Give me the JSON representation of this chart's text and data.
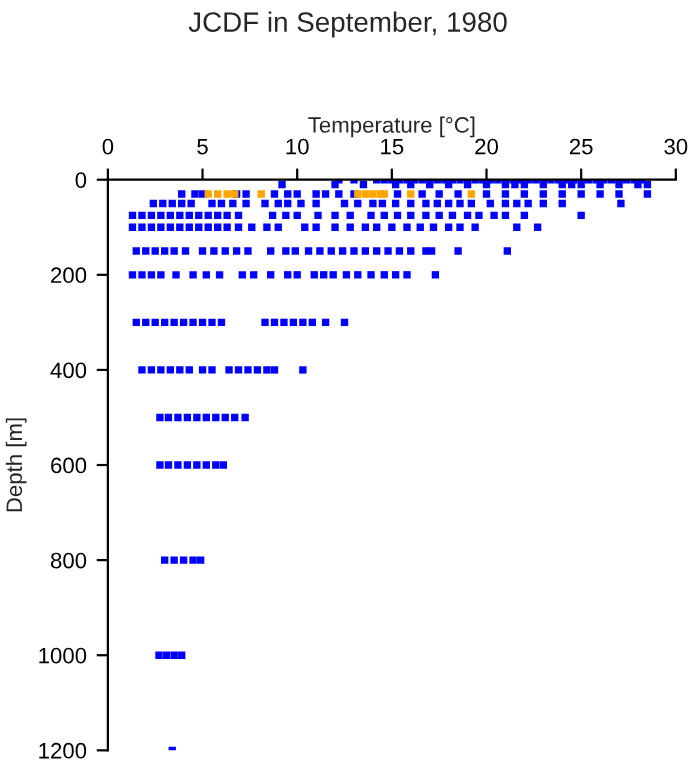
{
  "chart_data": {
    "type": "scatter",
    "title": "JCDF in September, 1980",
    "xlabel": "Temperature [°C]",
    "ylabel": "Depth [m]",
    "xlim": [
      0,
      30
    ],
    "xticks": [
      0,
      5,
      10,
      15,
      20,
      25,
      30
    ],
    "ylim": [
      1200,
      0
    ],
    "yticks": [
      0,
      200,
      400,
      600,
      800,
      1000,
      1200
    ],
    "grid": false,
    "legend": false,
    "marker": "square",
    "series": [
      {
        "color": "#0000ff",
        "x": [
          12.2,
          13.0,
          14.2,
          14.6,
          15.0,
          15.4,
          15.8,
          16.2,
          16.6,
          17.0,
          17.4,
          17.8,
          18.2,
          18.6,
          19.0,
          19.4,
          19.8,
          20.2,
          20.6,
          21.0,
          21.4,
          21.8,
          22.2,
          22.6,
          23.0,
          23.4,
          23.8,
          24.2,
          24.6,
          25.0,
          25.4,
          25.8,
          26.2,
          26.6,
          27.0,
          27.4,
          27.8,
          28.2,
          9.2,
          12.0,
          13.5,
          15.2,
          16,
          17,
          18,
          19,
          20,
          21,
          21.5,
          22,
          23,
          24,
          24.5,
          25,
          26,
          27,
          28,
          28.5,
          3.9,
          4.6,
          5.0,
          6.8,
          7.3,
          8.8,
          9.5,
          10.0,
          11.0,
          11.5,
          12.2,
          13.0,
          15.3,
          16.6,
          17.5,
          18.5,
          20.0,
          21.0,
          22.0,
          23.0,
          24.0,
          25.0,
          26.0,
          27.0,
          28.5,
          2.4,
          2.9,
          3.4,
          3.9,
          4.4,
          5.5,
          6.0,
          6.6,
          7.3,
          8.3,
          9.0,
          9.5,
          10.2,
          11.0,
          12.5,
          13.2,
          14.0,
          14.5,
          15.2,
          16.0,
          16.8,
          17.4,
          18.0,
          18.6,
          19.2,
          20.2,
          21.0,
          21.6,
          22.2,
          23.0,
          24.0,
          27.1,
          1.3,
          1.8,
          2.3,
          2.8,
          3.3,
          3.8,
          4.3,
          4.8,
          5.3,
          5.8,
          6.3,
          6.9,
          8.7,
          9.4,
          10.0,
          11.1,
          12.0,
          12.8,
          13.9,
          14.6,
          15.3,
          16.0,
          16.8,
          17.5,
          18.2,
          19.0,
          19.6,
          20.4,
          21.0,
          22.0,
          25.0,
          1.3,
          1.8,
          2.3,
          2.8,
          3.3,
          3.8,
          4.3,
          4.8,
          5.3,
          5.8,
          6.3,
          6.9,
          7.6,
          8.4,
          9.0,
          10.4,
          11.0,
          12.0,
          12.8,
          13.6,
          14.2,
          15.0,
          15.8,
          16.5,
          17.2,
          18.0,
          18.6,
          19.4,
          21.6,
          22.7,
          1.5,
          2.0,
          2.5,
          3.0,
          3.5,
          4.1,
          5.0,
          5.6,
          6.2,
          6.8,
          7.4,
          8.6,
          9.4,
          9.9,
          10.6,
          11.2,
          11.8,
          12.4,
          13.0,
          13.6,
          14.2,
          14.8,
          15.4,
          16.0,
          16.8,
          17.1,
          18.5,
          21.1,
          1.3,
          1.8,
          2.3,
          2.8,
          3.6,
          4.5,
          5.2,
          5.9,
          7.1,
          7.7,
          8.6,
          9.5,
          10.0,
          10.9,
          11.4,
          11.9,
          12.6,
          13.2,
          13.9,
          14.6,
          15.2,
          15.8,
          17.3,
          1.5,
          2.0,
          2.5,
          3.0,
          3.5,
          4.0,
          4.5,
          5.0,
          5.5,
          6.0,
          8.3,
          8.8,
          9.3,
          9.8,
          10.3,
          10.8,
          11.5,
          12.5,
          1.8,
          2.3,
          2.8,
          3.3,
          3.8,
          4.3,
          5.0,
          5.5,
          6.4,
          6.9,
          7.4,
          7.9,
          8.4,
          8.8,
          10.3,
          2.75,
          3.2,
          3.7,
          4.2,
          4.7,
          5.2,
          5.7,
          6.2,
          6.7,
          7.25,
          2.75,
          3.2,
          3.7,
          4.2,
          4.7,
          5.2,
          5.7,
          6.1,
          3.0,
          3.5,
          4.0,
          4.5,
          4.9,
          2.7,
          3.1,
          3.5,
          3.9,
          3.4
        ],
        "values": [
          0,
          0,
          0,
          0,
          0,
          0,
          0,
          0,
          0,
          0,
          0,
          0,
          0,
          0,
          0,
          0,
          0,
          0,
          0,
          0,
          0,
          0,
          0,
          0,
          0,
          0,
          0,
          0,
          0,
          0,
          0,
          0,
          0,
          0,
          0,
          0,
          0,
          0,
          10,
          10,
          10,
          10,
          10,
          10,
          10,
          10,
          10,
          10,
          10,
          10,
          10,
          10,
          10,
          10,
          10,
          10,
          10,
          10,
          30,
          30,
          30,
          30,
          30,
          30,
          30,
          30,
          30,
          30,
          30,
          30,
          30,
          30,
          30,
          30,
          30,
          30,
          30,
          30,
          30,
          30,
          30,
          30,
          30,
          50,
          50,
          50,
          50,
          50,
          50,
          50,
          50,
          50,
          50,
          50,
          50,
          50,
          50,
          50,
          50,
          50,
          50,
          50,
          50,
          50,
          50,
          50,
          50,
          50,
          50,
          50,
          50,
          50,
          50,
          50,
          50,
          75,
          75,
          75,
          75,
          75,
          75,
          75,
          75,
          75,
          75,
          75,
          75,
          75,
          75,
          75,
          75,
          75,
          75,
          75,
          75,
          75,
          75,
          75,
          75,
          75,
          75,
          75,
          75,
          75,
          75,
          75,
          100,
          100,
          100,
          100,
          100,
          100,
          100,
          100,
          100,
          100,
          100,
          100,
          100,
          100,
          100,
          100,
          100,
          100,
          100,
          100,
          100,
          100,
          100,
          100,
          100,
          100,
          100,
          100,
          100,
          100,
          150,
          150,
          150,
          150,
          150,
          150,
          150,
          150,
          150,
          150,
          150,
          150,
          150,
          150,
          150,
          150,
          150,
          150,
          150,
          150,
          150,
          150,
          150,
          150,
          150,
          150,
          150,
          150,
          200,
          200,
          200,
          200,
          200,
          200,
          200,
          200,
          200,
          200,
          200,
          200,
          200,
          200,
          200,
          200,
          200,
          200,
          200,
          200,
          200,
          200,
          200,
          300,
          300,
          300,
          300,
          300,
          300,
          300,
          300,
          300,
          300,
          300,
          300,
          300,
          300,
          300,
          300,
          300,
          300,
          400,
          400,
          400,
          400,
          400,
          400,
          400,
          400,
          400,
          400,
          400,
          400,
          400,
          400,
          400,
          500,
          500,
          500,
          500,
          500,
          500,
          500,
          500,
          500,
          500,
          600,
          600,
          600,
          600,
          600,
          600,
          600,
          600,
          800,
          800,
          800,
          800,
          800,
          1000,
          1000,
          1000,
          1000,
          1200
        ]
      },
      {
        "color": "#ffa500",
        "x": [
          5.3,
          5.8,
          6.3,
          6.7,
          8.1,
          13.2,
          13.6,
          14.0,
          14.4,
          14.6,
          16.0,
          19.2
        ],
        "values": [
          30,
          30,
          30,
          30,
          30,
          30,
          30,
          30,
          30,
          30,
          30,
          30
        ]
      }
    ]
  }
}
